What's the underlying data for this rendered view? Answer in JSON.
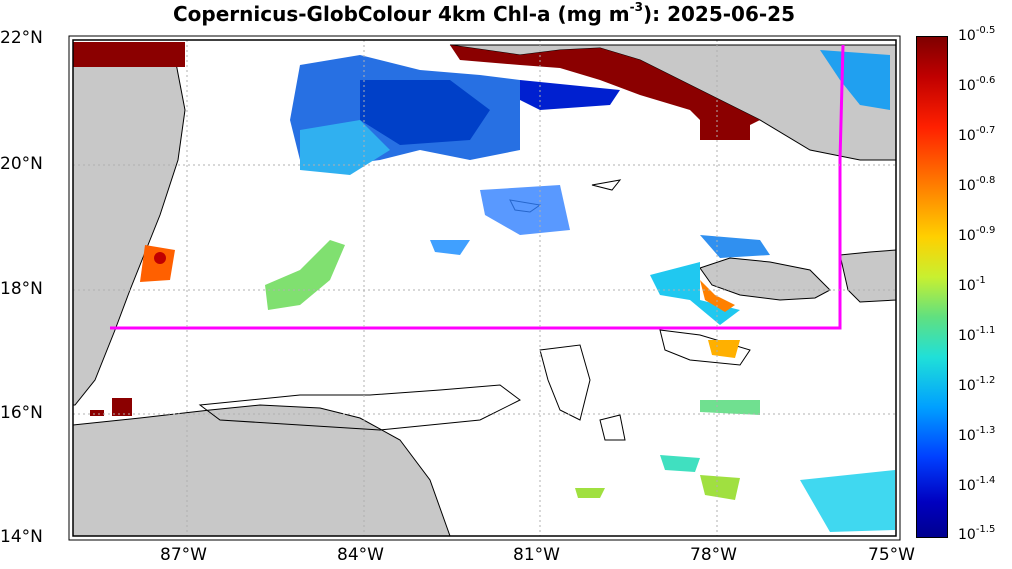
{
  "title": {
    "main": "Copernicus-GlobColour 4km Chl-a (mg m",
    "exp": "-3",
    "tail": "): 2025-06-25"
  },
  "axes": {
    "lat_labels": [
      "22°N",
      "20°N",
      "18°N",
      "16°N",
      "14°N"
    ],
    "lon_labels": [
      "87°W",
      "84°W",
      "81°W",
      "78°W",
      "75°W"
    ],
    "lon_range": [
      -89,
      -75
    ],
    "lat_range": [
      14,
      22
    ]
  },
  "colorbar": {
    "base": "10",
    "exponents": [
      "-0.5",
      "-0.6",
      "-0.7",
      "-0.8",
      "-0.9",
      "-1",
      "-1.1",
      "-1.2",
      "-1.3",
      "-1.4",
      "-1.5"
    ]
  },
  "colors": {
    "land": "#c8c8c8",
    "coast": "#000000",
    "box": "#ff00ff",
    "grid": "#b0b0b0"
  }
}
